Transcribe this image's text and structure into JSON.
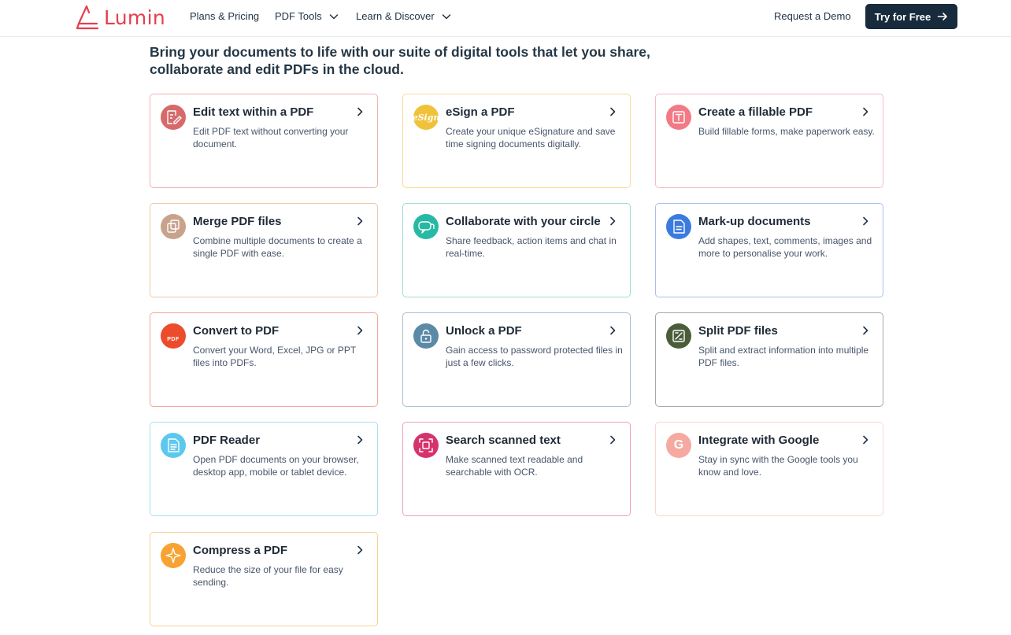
{
  "nav": {
    "logo_text": "Lumin",
    "links": [
      {
        "label": "Plans & Pricing"
      },
      {
        "label": "PDF Tools"
      },
      {
        "label": "Learn & Discover"
      }
    ],
    "demo_label": "Request a Demo",
    "cta_label": "Try for Free"
  },
  "headline": "Bring your documents to life with our suite of digital tools that let you share, collaborate and edit PDFs in the cloud.",
  "colors": {
    "brand": "#e63e4f",
    "cta_bg": "#172b3c"
  },
  "cards": [
    {
      "title": "Edit text within a PDF",
      "desc": "Edit PDF text without converting your document.",
      "icon": "edit-icon",
      "color": "#d66a6a",
      "border": "#f0b3b0"
    },
    {
      "title": "eSign a PDF",
      "desc": "Create your unique eSignature and save time signing documents digitally.",
      "icon": "esign-icon",
      "color": "#f0c23a",
      "border": "#f7dc95",
      "icon_text": "eSign"
    },
    {
      "title": "Create a fillable PDF",
      "desc": "Build fillable forms, make paperwork easy.",
      "icon": "form-icon",
      "color": "#f27a86",
      "border": "#f8b9c0"
    },
    {
      "title": "Merge PDF files",
      "desc": "Combine multiple documents to create a single PDF with ease.",
      "icon": "merge-icon",
      "color": "#c9a28c",
      "border": "#f2c7a9"
    },
    {
      "title": "Collaborate with your circle",
      "desc": "Share feedback, action items and chat in real-time.",
      "icon": "chat-icon",
      "color": "#27b9a4",
      "border": "#9fddd2"
    },
    {
      "title": "Mark-up documents",
      "desc": "Add shapes, text, comments, images and more to personalise your work.",
      "icon": "markup-icon",
      "color": "#3b7be0",
      "border": "#a8bff0"
    },
    {
      "title": "Convert to PDF",
      "desc": "Convert your Word, Excel, JPG or PPT files into PDFs.",
      "icon": "convert-icon",
      "color": "#ec4c2b",
      "border": "#f2a897",
      "icon_text": "PDF"
    },
    {
      "title": "Unlock a PDF",
      "desc": "Gain access to password protected files in just a few clicks.",
      "icon": "lock-icon",
      "color": "#5a8aa6",
      "border": "#a9c1d2"
    },
    {
      "title": "Split PDF files",
      "desc": "Split and extract information into multiple PDF files.",
      "icon": "split-icon",
      "color": "#4a5d3a",
      "border": "#a7a7a7"
    },
    {
      "title": "PDF Reader",
      "desc": "Open PDF documents on your browser, desktop app, mobile or tablet device.",
      "icon": "reader-icon",
      "color": "#5cc8ee",
      "border": "#a9def2"
    },
    {
      "title": "Search scanned text",
      "desc": "Make scanned text readable and searchable with OCR.",
      "icon": "scan-icon",
      "color": "#d6336c",
      "border": "#eea1b6"
    },
    {
      "title": "Integrate with Google",
      "desc": "Stay in sync with the Google tools you know and love.",
      "icon": "google-icon",
      "color": "#f6a9a0",
      "border": "#fad5cf",
      "icon_text": "G"
    },
    {
      "title": "Compress a PDF",
      "desc": "Reduce the size of your file for easy sending.",
      "icon": "compress-icon",
      "color": "#f7a233",
      "border": "#f8cf96"
    }
  ]
}
